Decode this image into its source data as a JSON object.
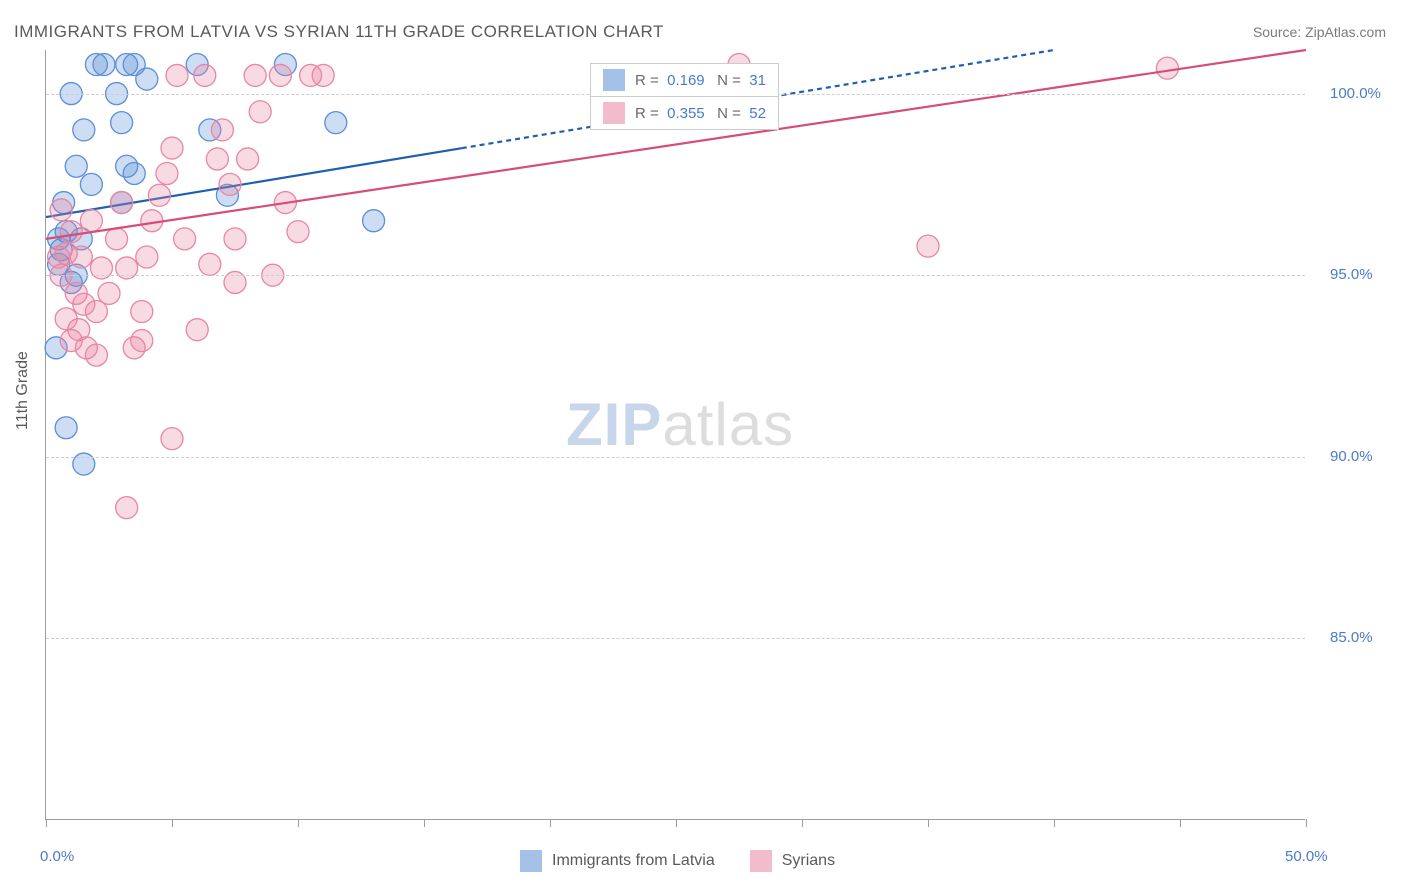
{
  "title": "IMMIGRANTS FROM LATVIA VS SYRIAN 11TH GRADE CORRELATION CHART",
  "source": "Source: ZipAtlas.com",
  "ylabel": "11th Grade",
  "watermark": {
    "zip": "ZIP",
    "atlas": "atlas"
  },
  "chart": {
    "type": "scatter",
    "xlim": [
      0,
      50
    ],
    "ylim": [
      80,
      101.2
    ],
    "xticks": [
      0,
      5,
      10,
      15,
      20,
      25,
      30,
      35,
      40,
      45,
      50
    ],
    "xtick_labels": {
      "0": "0.0%",
      "50": "50.0%"
    },
    "yticks": [
      85,
      90,
      95,
      100
    ],
    "ytick_labels": {
      "85": "85.0%",
      "90": "90.0%",
      "95": "95.0%",
      "100": "100.0%"
    },
    "grid_color": "#cccccc",
    "axis_color": "#9e9e9e",
    "marker_radius": 11,
    "marker_fill_opacity": 0.3,
    "marker_stroke_width": 1.3,
    "line_width": 2.2,
    "series": [
      {
        "name": "Immigrants from Latvia",
        "color": "#5b8fd6",
        "line_color": "#1f5fb0",
        "R": "0.169",
        "N": "31",
        "regression": {
          "x1": 0,
          "y1": 96.6,
          "x2": 40,
          "y2": 101.2,
          "dashed_from_x": 16.5
        },
        "points": [
          [
            0.5,
            96.0
          ],
          [
            0.6,
            95.7
          ],
          [
            0.8,
            96.2
          ],
          [
            0.7,
            97.0
          ],
          [
            0.5,
            95.3
          ],
          [
            0.4,
            93.0
          ],
          [
            0.8,
            90.8
          ],
          [
            1.5,
            89.8
          ],
          [
            1.0,
            94.8
          ],
          [
            1.2,
            95.0
          ],
          [
            1.4,
            96.0
          ],
          [
            1.2,
            98.0
          ],
          [
            1.5,
            99.0
          ],
          [
            1.8,
            97.5
          ],
          [
            2.0,
            100.8
          ],
          [
            2.3,
            100.8
          ],
          [
            2.8,
            100.0
          ],
          [
            3.2,
            100.8
          ],
          [
            3.5,
            100.8
          ],
          [
            3.0,
            99.2
          ],
          [
            3.2,
            98.0
          ],
          [
            3.0,
            97.0
          ],
          [
            3.5,
            97.8
          ],
          [
            4.0,
            100.4
          ],
          [
            6.0,
            100.8
          ],
          [
            6.5,
            99.0
          ],
          [
            7.2,
            97.2
          ],
          [
            9.5,
            100.8
          ],
          [
            11.5,
            99.2
          ],
          [
            13.0,
            96.5
          ],
          [
            1.0,
            100.0
          ]
        ]
      },
      {
        "name": "Syrians",
        "color": "#e986a3",
        "line_color": "#d64d78",
        "R": "0.355",
        "N": "52",
        "regression": {
          "x1": 0,
          "y1": 96.0,
          "x2": 50,
          "y2": 101.2,
          "dashed_from_x": null
        },
        "points": [
          [
            0.5,
            95.5
          ],
          [
            0.6,
            95.0
          ],
          [
            0.8,
            95.6
          ],
          [
            1.0,
            96.2
          ],
          [
            1.2,
            94.5
          ],
          [
            1.4,
            95.5
          ],
          [
            1.5,
            94.2
          ],
          [
            1.8,
            96.5
          ],
          [
            2.0,
            94.0
          ],
          [
            2.2,
            95.2
          ],
          [
            2.5,
            94.5
          ],
          [
            2.8,
            96.0
          ],
          [
            3.0,
            97.0
          ],
          [
            3.2,
            95.2
          ],
          [
            3.5,
            93.0
          ],
          [
            3.8,
            94.0
          ],
          [
            4.0,
            95.5
          ],
          [
            4.2,
            96.5
          ],
          [
            4.5,
            97.2
          ],
          [
            4.8,
            97.8
          ],
          [
            5.0,
            98.5
          ],
          [
            5.2,
            100.5
          ],
          [
            5.5,
            96.0
          ],
          [
            6.0,
            93.5
          ],
          [
            6.3,
            100.5
          ],
          [
            6.8,
            98.2
          ],
          [
            7.0,
            99.0
          ],
          [
            7.3,
            97.5
          ],
          [
            7.5,
            96.0
          ],
          [
            8.0,
            98.2
          ],
          [
            8.3,
            100.5
          ],
          [
            8.5,
            99.5
          ],
          [
            9.0,
            95.0
          ],
          [
            9.3,
            100.5
          ],
          [
            9.5,
            97.0
          ],
          [
            1.0,
            93.2
          ],
          [
            1.3,
            93.5
          ],
          [
            1.6,
            93.0
          ],
          [
            0.8,
            93.8
          ],
          [
            2.0,
            92.8
          ],
          [
            3.8,
            93.2
          ],
          [
            5.0,
            90.5
          ],
          [
            3.2,
            88.6
          ],
          [
            0.6,
            96.8
          ],
          [
            10.0,
            96.2
          ],
          [
            10.5,
            100.5
          ],
          [
            11.0,
            100.5
          ],
          [
            27.5,
            100.8
          ],
          [
            35.0,
            95.8
          ],
          [
            44.5,
            100.7
          ],
          [
            7.5,
            94.8
          ],
          [
            6.5,
            95.3
          ]
        ]
      }
    ]
  },
  "legend_top": {
    "R_label": "R  =",
    "N_label": "N  =",
    "label_color": "#6a6a6a",
    "value_color": "#4a7bc8"
  },
  "legend_bottom": [
    {
      "label": "Immigrants from Latvia",
      "color": "#5b8fd6"
    },
    {
      "label": "Syrians",
      "color": "#e986a3"
    }
  ]
}
